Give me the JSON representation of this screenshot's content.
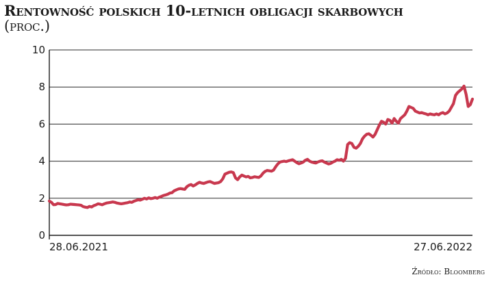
{
  "chart_data": {
    "type": "line",
    "title": "Rentowność polskich 10-letnich obligacji skarbowych",
    "title_unit": "(proc.)",
    "source": "Źródło: Bloomberg",
    "x_start_label": "28.06.2021",
    "x_end_label": "27.06.2022",
    "ylim": [
      0,
      10
    ],
    "yticks": [
      "0",
      "2",
      "4",
      "6",
      "8",
      "10"
    ],
    "grid": true,
    "line_color": "#c8384e",
    "series": [
      {
        "values": [
          1.85,
          1.78,
          1.65,
          1.66,
          1.72,
          1.7,
          1.68,
          1.66,
          1.64,
          1.65,
          1.68,
          1.67,
          1.66,
          1.65,
          1.64,
          1.62,
          1.55,
          1.52,
          1.5,
          1.56,
          1.53,
          1.6,
          1.64,
          1.7,
          1.68,
          1.65,
          1.7,
          1.74,
          1.76,
          1.78,
          1.8,
          1.78,
          1.74,
          1.72,
          1.7,
          1.72,
          1.74,
          1.76,
          1.8,
          1.78,
          1.84,
          1.88,
          1.92,
          1.9,
          1.95,
          2.0,
          1.96,
          2.02,
          1.98,
          2.0,
          2.04,
          2.0,
          2.06,
          2.1,
          2.15,
          2.18,
          2.22,
          2.28,
          2.3,
          2.4,
          2.45,
          2.5,
          2.52,
          2.5,
          2.48,
          2.62,
          2.7,
          2.74,
          2.66,
          2.72,
          2.8,
          2.86,
          2.82,
          2.8,
          2.84,
          2.88,
          2.9,
          2.85,
          2.8,
          2.82,
          2.84,
          2.9,
          3.05,
          3.3,
          3.35,
          3.4,
          3.42,
          3.38,
          3.1,
          3.0,
          3.15,
          3.25,
          3.2,
          3.15,
          3.18,
          3.1,
          3.12,
          3.16,
          3.14,
          3.12,
          3.2,
          3.35,
          3.45,
          3.5,
          3.48,
          3.46,
          3.52,
          3.7,
          3.85,
          3.95,
          3.98,
          4.0,
          3.98,
          4.02,
          4.05,
          4.08,
          4.0,
          3.92,
          3.86,
          3.9,
          3.95,
          4.05,
          4.1,
          4.0,
          3.95,
          3.92,
          3.9,
          3.96,
          4.0,
          4.02,
          3.95,
          3.9,
          3.85,
          3.88,
          3.95,
          4.0,
          4.08,
          4.05,
          4.1,
          4.0,
          4.15,
          4.9,
          5.0,
          4.95,
          4.75,
          4.7,
          4.8,
          4.95,
          5.2,
          5.35,
          5.45,
          5.48,
          5.4,
          5.3,
          5.45,
          5.7,
          5.95,
          6.15,
          6.1,
          6.0,
          6.25,
          6.2,
          6.05,
          6.3,
          6.15,
          6.05,
          6.3,
          6.4,
          6.5,
          6.7,
          6.95,
          6.9,
          6.85,
          6.7,
          6.65,
          6.6,
          6.62,
          6.58,
          6.55,
          6.5,
          6.55,
          6.52,
          6.5,
          6.55,
          6.5,
          6.58,
          6.62,
          6.55,
          6.6,
          6.7,
          6.9,
          7.1,
          7.55,
          7.7,
          7.8,
          7.9,
          8.05,
          7.6,
          6.95,
          7.05,
          7.35
        ]
      }
    ]
  }
}
